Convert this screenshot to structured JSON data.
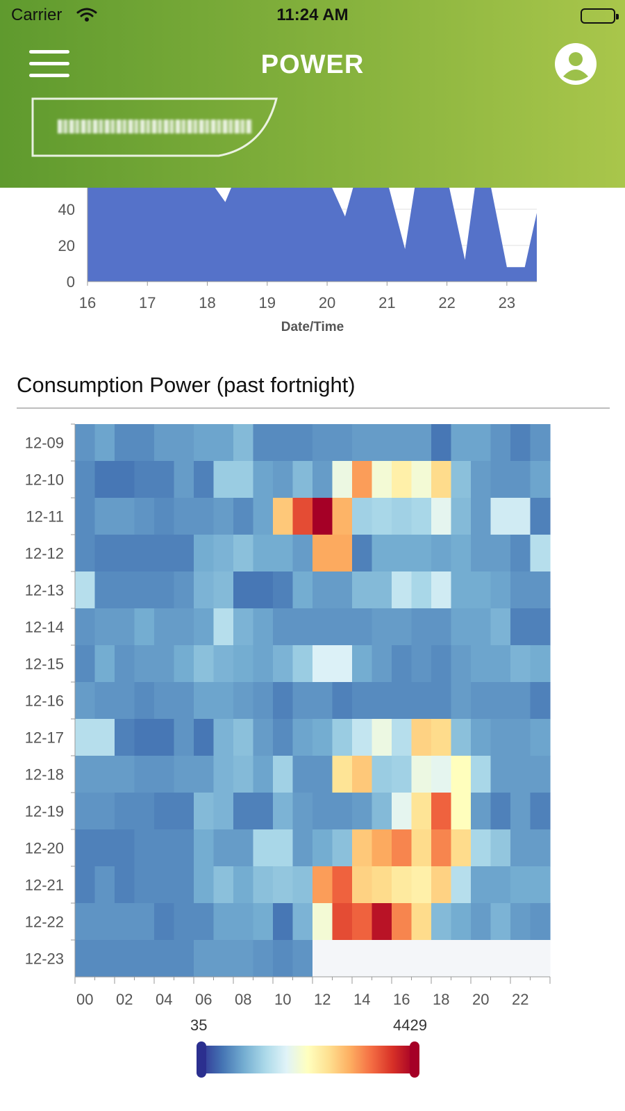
{
  "status_bar": {
    "carrier": "Carrier",
    "time": "11:24 AM"
  },
  "header": {
    "title": "POWER",
    "menu_icon": "hamburger-menu-icon",
    "profile_icon": "user-profile-icon"
  },
  "top_chart": {
    "y_ticks": [
      "40",
      "20",
      "0"
    ],
    "x_ticks": [
      "16",
      "17",
      "18",
      "19",
      "20",
      "21",
      "22",
      "23"
    ],
    "xlabel": "Date/Time"
  },
  "section": {
    "title": "Consumption Power (past fortnight)"
  },
  "legend": {
    "min": "35",
    "max": "4429"
  },
  "chart_data": [
    {
      "type": "area",
      "xlabel": "Date/Time",
      "x_range": [
        16,
        23.5
      ],
      "ylim": [
        0,
        60
      ],
      "x": [
        16,
        16.5,
        17,
        17.5,
        18,
        18.3,
        18.5,
        19,
        19.3,
        19.5,
        20,
        20.3,
        20.5,
        21,
        21.3,
        21.5,
        22,
        22.3,
        22.5,
        22.7,
        23,
        23.3,
        23.5
      ],
      "values": [
        60,
        60,
        60,
        60,
        58,
        44,
        60,
        60,
        52,
        60,
        58,
        36,
        60,
        56,
        18,
        60,
        58,
        12,
        60,
        58,
        8,
        8,
        38
      ],
      "color": "#5572c9"
    },
    {
      "type": "heatmap",
      "title": "Consumption Power (past fortnight)",
      "x_ticks": [
        "00",
        "02",
        "04",
        "06",
        "08",
        "10",
        "12",
        "14",
        "16",
        "18",
        "20",
        "22"
      ],
      "rows": [
        "12-09",
        "12-10",
        "12-11",
        "12-12",
        "12-13",
        "12-14",
        "12-15",
        "12-16",
        "12-17",
        "12-18",
        "12-19",
        "12-20",
        "12-21",
        "12-22",
        "12-23"
      ],
      "value_range": [
        35,
        4429
      ],
      "colorscale": [
        "#313695",
        "#4575b4",
        "#74add1",
        "#abd9e9",
        "#e0f3f8",
        "#ffffbf",
        "#fee090",
        "#fdae61",
        "#f46d43",
        "#d73027",
        "#a50026"
      ],
      "values": [
        [
          400,
          500,
          350,
          350,
          450,
          450,
          500,
          500,
          650,
          350,
          350,
          350,
          400,
          400,
          450,
          450,
          450,
          450,
          250,
          500,
          500,
          400,
          300,
          400
        ],
        [
          350,
          250,
          250,
          300,
          300,
          450,
          300,
          800,
          800,
          500,
          450,
          650,
          450,
          1500,
          2900,
          1600,
          2000,
          1600,
          2300,
          700,
          450,
          400,
          400,
          500
        ],
        [
          350,
          450,
          450,
          400,
          350,
          400,
          400,
          450,
          350,
          500,
          2500,
          3600,
          4429,
          2700,
          850,
          900,
          850,
          900,
          1400,
          650,
          450,
          1200,
          1200,
          300
        ],
        [
          350,
          300,
          300,
          300,
          300,
          300,
          550,
          600,
          700,
          550,
          550,
          450,
          2800,
          2800,
          300,
          550,
          550,
          550,
          500,
          550,
          450,
          450,
          350,
          1000
        ],
        [
          1000,
          350,
          350,
          350,
          350,
          400,
          600,
          650,
          250,
          250,
          300,
          550,
          450,
          450,
          650,
          650,
          1100,
          900,
          1200,
          550,
          550,
          500,
          400,
          400
        ],
        [
          400,
          450,
          450,
          550,
          450,
          450,
          500,
          1000,
          600,
          500,
          400,
          400,
          400,
          400,
          400,
          450,
          450,
          400,
          400,
          500,
          500,
          600,
          300,
          300
        ],
        [
          350,
          550,
          400,
          450,
          450,
          550,
          700,
          600,
          550,
          500,
          600,
          800,
          1300,
          1300,
          550,
          450,
          350,
          400,
          350,
          450,
          500,
          500,
          600,
          550
        ],
        [
          450,
          400,
          400,
          350,
          400,
          400,
          500,
          500,
          450,
          400,
          300,
          400,
          400,
          300,
          350,
          350,
          350,
          350,
          350,
          450,
          400,
          400,
          400,
          300
        ],
        [
          1000,
          1000,
          300,
          250,
          250,
          400,
          250,
          600,
          700,
          450,
          350,
          500,
          550,
          800,
          1100,
          1500,
          1000,
          2400,
          2300,
          700,
          500,
          450,
          450,
          500
        ],
        [
          450,
          450,
          450,
          400,
          400,
          450,
          450,
          600,
          650,
          500,
          850,
          400,
          400,
          2200,
          2500,
          800,
          850,
          1500,
          1400,
          1800,
          900,
          450,
          450,
          450
        ],
        [
          400,
          400,
          350,
          350,
          300,
          300,
          650,
          600,
          300,
          300,
          600,
          450,
          400,
          400,
          450,
          650,
          1400,
          2200,
          3400,
          1800,
          450,
          300,
          450,
          300
        ],
        [
          300,
          300,
          300,
          350,
          350,
          350,
          550,
          450,
          450,
          900,
          900,
          450,
          550,
          700,
          2500,
          2800,
          3100,
          2300,
          3100,
          2300,
          900,
          750,
          450,
          450
        ],
        [
          300,
          400,
          300,
          350,
          350,
          350,
          550,
          700,
          550,
          700,
          750,
          700,
          2900,
          3400,
          2400,
          2300,
          2100,
          2000,
          2400,
          1000,
          500,
          500,
          550,
          550
        ],
        [
          400,
          400,
          400,
          400,
          300,
          350,
          350,
          500,
          500,
          550,
          250,
          600,
          1600,
          3600,
          3400,
          4200,
          3100,
          2300,
          650,
          550,
          450,
          600,
          450,
          400
        ],
        [
          350,
          350,
          350,
          350,
          350,
          350,
          450,
          450,
          450,
          400,
          350,
          400,
          null,
          null,
          null,
          null,
          null,
          null,
          null,
          null,
          null,
          null,
          null,
          null
        ]
      ]
    }
  ]
}
